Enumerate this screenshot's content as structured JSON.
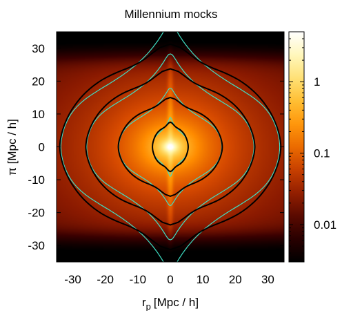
{
  "chart_data": {
    "type": "heatmap",
    "title": "Millennium mocks",
    "xlabel": "r",
    "xlabel_sub": "p",
    "xlabel_unit": "[Mpc / h]",
    "ylabel": "π [Mpc / h]",
    "xlim": [
      -35,
      35
    ],
    "ylim": [
      -35,
      35
    ],
    "xticks": [
      -30,
      -20,
      -10,
      0,
      10,
      20,
      30
    ],
    "xtick_labels": [
      "-30",
      "-20",
      "-10",
      "0",
      "10",
      "20",
      "30"
    ],
    "yticks": [
      -30,
      -20,
      -10,
      0,
      10,
      20,
      30
    ],
    "ytick_labels": [
      "-30",
      "-20",
      "-10",
      "0",
      "10",
      "20",
      "30"
    ],
    "colorbar": {
      "scale": "log",
      "range": [
        0.003,
        5
      ],
      "ticks": [
        0.01,
        0.1,
        1
      ],
      "tick_labels": [
        "0.01",
        "0.1",
        "1"
      ]
    },
    "colormap": [
      "#000000",
      "#3a0000",
      "#8b1a00",
      "#d64a00",
      "#ff8c00",
      "#ffc53a",
      "#fff4a0",
      "#ffffff"
    ],
    "contours_black": [
      {
        "level_index": 1,
        "r_perp_extent": 5.5,
        "pi_extent": 6.0
      },
      {
        "level_index": 2,
        "r_perp_extent": 16,
        "pi_extent": 12
      },
      {
        "level_index": 3,
        "r_perp_extent": 26,
        "pi_extent": 19
      },
      {
        "level_index": 4,
        "r_perp_extent": 34,
        "pi_extent": 25
      }
    ],
    "contour_colors": {
      "black": "#000000",
      "cyan": "#3fe0c5"
    }
  }
}
